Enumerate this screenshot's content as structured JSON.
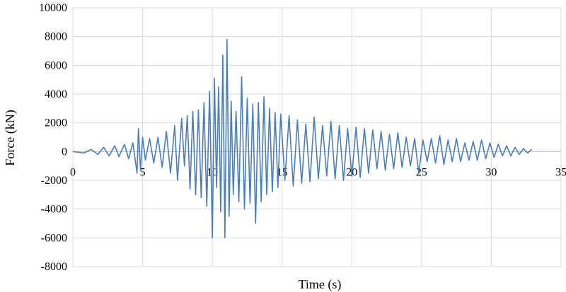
{
  "chart_data": {
    "type": "line",
    "title": "",
    "xlabel": "Time (s)",
    "ylabel": "Force (kN)",
    "xlim": [
      0,
      35
    ],
    "ylim": [
      -8000,
      10000
    ],
    "x_ticks": [
      0,
      5,
      10,
      15,
      20,
      25,
      30,
      35
    ],
    "y_ticks": [
      -8000,
      -6000,
      -4000,
      -2000,
      0,
      2000,
      4000,
      6000,
      8000,
      10000
    ],
    "x_tick_labels": [
      "0",
      "5",
      "10",
      "15",
      "20",
      "25",
      "30",
      "35"
    ],
    "y_tick_labels": [
      "-8000",
      "-6000",
      "-4000",
      "-2000",
      "0",
      "2000",
      "4000",
      "6000",
      "8000",
      "10000"
    ],
    "grid": true,
    "legend": "none",
    "series_color": "#4a7ebb",
    "series": [
      {
        "x": [
          0,
          0.8,
          1.3,
          1.8,
          2.2,
          2.6,
          3.0,
          3.3,
          3.7,
          4.0,
          4.3,
          4.6,
          4.7,
          4.85,
          5.0,
          5.2,
          5.5,
          5.8,
          6.1,
          6.4,
          6.7,
          7.0,
          7.3,
          7.5,
          7.8,
          8.0,
          8.2,
          8.4,
          8.6,
          8.8,
          9.0,
          9.2,
          9.4,
          9.6,
          9.8,
          10.0,
          10.15,
          10.3,
          10.45,
          10.6,
          10.75,
          10.9,
          11.05,
          11.2,
          11.35,
          11.5,
          11.7,
          11.9,
          12.1,
          12.3,
          12.5,
          12.7,
          12.9,
          13.1,
          13.3,
          13.5,
          13.7,
          13.9,
          14.1,
          14.3,
          14.5,
          14.7,
          14.9,
          15.2,
          15.5,
          15.8,
          16.1,
          16.4,
          16.7,
          17.0,
          17.3,
          17.6,
          17.9,
          18.2,
          18.5,
          18.8,
          19.1,
          19.4,
          19.7,
          20.0,
          20.3,
          20.6,
          20.9,
          21.2,
          21.5,
          21.8,
          22.1,
          22.4,
          22.7,
          23.0,
          23.3,
          23.6,
          23.9,
          24.2,
          24.5,
          24.8,
          25.1,
          25.4,
          25.7,
          26.0,
          26.3,
          26.6,
          26.9,
          27.2,
          27.5,
          27.8,
          28.1,
          28.4,
          28.7,
          29.0,
          29.3,
          29.6,
          29.9,
          30.2,
          30.5,
          30.8,
          31.1,
          31.4,
          31.7,
          32.0,
          32.3,
          32.6,
          32.9
        ],
        "y": [
          0,
          -100,
          150,
          -200,
          300,
          -300,
          400,
          -350,
          500,
          -500,
          600,
          -1500,
          1600,
          -1300,
          1000,
          -600,
          900,
          -800,
          1000,
          -1100,
          1400,
          -1500,
          1800,
          -2000,
          2300,
          -1000,
          2500,
          -2600,
          2800,
          -3000,
          2900,
          -3200,
          3400,
          -3800,
          4200,
          -6000,
          5100,
          -2500,
          4500,
          -4200,
          6700,
          -6000,
          7800,
          -4500,
          3500,
          -3000,
          2800,
          -3500,
          5200,
          -4000,
          3700,
          -3600,
          3300,
          -5000,
          3400,
          -3500,
          3800,
          -3000,
          3000,
          -2800,
          2700,
          -2500,
          2600,
          -2000,
          2500,
          -2400,
          2200,
          -2200,
          1900,
          -2100,
          2400,
          -1900,
          1800,
          -1700,
          2100,
          -1900,
          1800,
          -2000,
          1600,
          -1700,
          1700,
          -1800,
          1600,
          -1500,
          1500,
          -1200,
          1400,
          -1300,
          1200,
          -1200,
          1300,
          -1100,
          1000,
          -1000,
          900,
          -1500,
          800,
          -700,
          900,
          -800,
          1100,
          -900,
          800,
          -700,
          900,
          -700,
          600,
          -600,
          700,
          -600,
          800,
          -500,
          600,
          -400,
          500,
          -300,
          400,
          -300,
          300,
          -200,
          200,
          -100,
          150
        ]
      }
    ]
  }
}
